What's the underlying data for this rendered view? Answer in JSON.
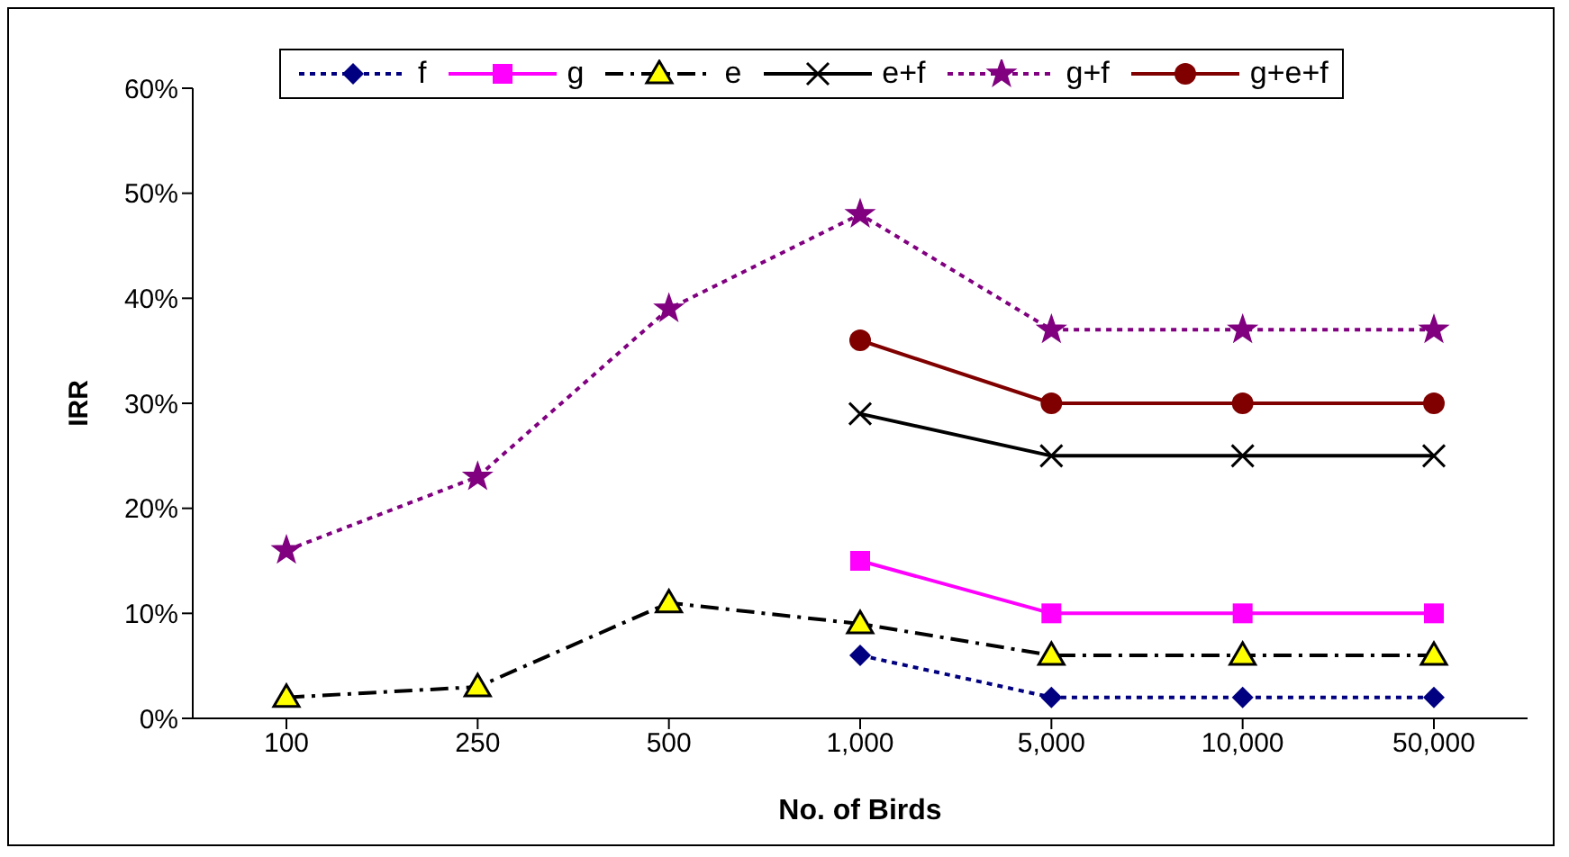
{
  "chart_data": {
    "type": "line",
    "xlabel": "No. of Birds",
    "ylabel": "IRR",
    "categories": [
      "100",
      "250",
      "500",
      "1,000",
      "5,000",
      "10,000",
      "50,000"
    ],
    "ylim": [
      0,
      60
    ],
    "yticks": [
      {
        "value": 0,
        "label": "0%"
      },
      {
        "value": 10,
        "label": "10%"
      },
      {
        "value": 20,
        "label": "20%"
      },
      {
        "value": 30,
        "label": "30%"
      },
      {
        "value": 40,
        "label": "40%"
      },
      {
        "value": 50,
        "label": "50%"
      },
      {
        "value": 60,
        "label": "60%"
      }
    ],
    "grid": false,
    "legend": "top",
    "series": [
      {
        "name": "f",
        "color": "#000080",
        "marker": "diamond",
        "line_style": "dotted",
        "values": [
          null,
          null,
          null,
          6,
          2,
          2,
          2
        ]
      },
      {
        "name": "g",
        "color": "#ff00ff",
        "marker": "square",
        "line_style": "solid",
        "values": [
          null,
          null,
          null,
          15,
          10,
          10,
          10
        ]
      },
      {
        "name": "e",
        "color": "#000000",
        "marker": "triangle",
        "line_style": "dashed",
        "values": [
          2,
          3,
          11,
          9,
          6,
          6,
          6
        ]
      },
      {
        "name": "e+f",
        "color": "#000000",
        "marker": "cross",
        "line_style": "solid",
        "values": [
          null,
          null,
          null,
          29,
          25,
          25,
          25
        ]
      },
      {
        "name": "g+f",
        "color": "#800080",
        "marker": "star",
        "line_style": "dotted",
        "values": [
          16,
          23,
          39,
          48,
          37,
          37,
          37
        ]
      },
      {
        "name": "g+e+f",
        "color": "#800000",
        "marker": "circle",
        "line_style": "solid",
        "values": [
          null,
          null,
          null,
          36,
          30,
          30,
          30
        ]
      }
    ]
  }
}
